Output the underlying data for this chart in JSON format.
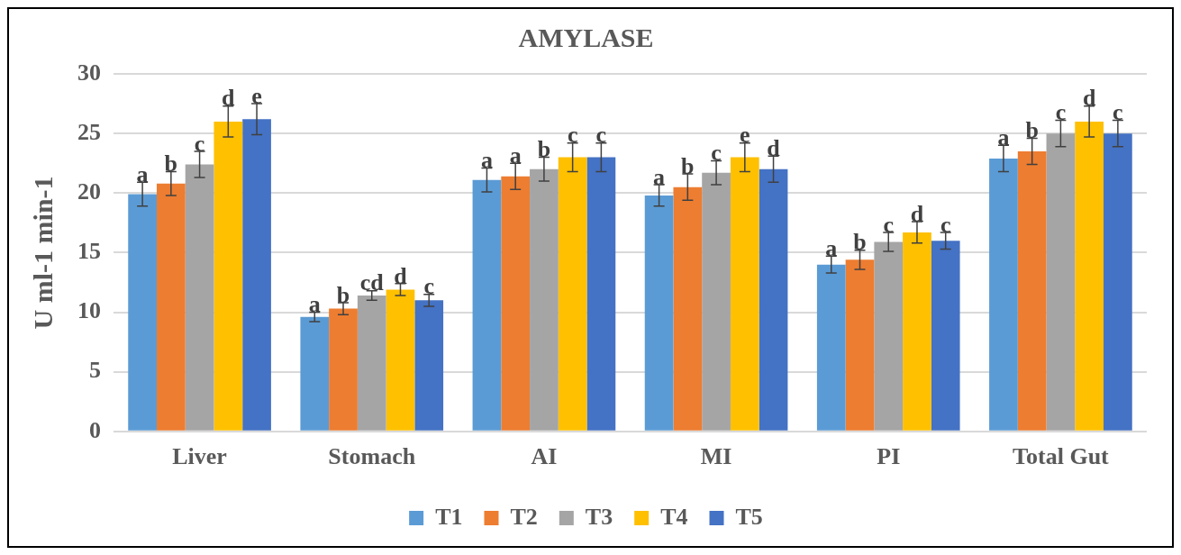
{
  "chart_data": {
    "type": "bar",
    "title": "AMYLASE",
    "ylabel": "U ml-1 min-1",
    "categories": [
      "Liver",
      "Stomach",
      "AI",
      "MI",
      "PI",
      "Total Gut"
    ],
    "series": [
      {
        "name": "T1",
        "color": "#5b9bd5",
        "values": [
          19.9,
          9.6,
          21.1,
          19.8,
          14.0,
          22.9
        ],
        "errors": [
          1.0,
          0.4,
          1.0,
          0.9,
          0.7,
          1.1
        ],
        "value_labels": [
          "a",
          "a",
          "a",
          "a",
          "a",
          "a"
        ]
      },
      {
        "name": "T2",
        "color": "#ed7d31",
        "values": [
          20.8,
          10.3,
          21.4,
          20.5,
          14.4,
          23.5
        ],
        "errors": [
          1.0,
          0.5,
          1.1,
          1.1,
          0.8,
          1.1
        ],
        "value_labels": [
          "b",
          "b",
          "a",
          "b",
          "b",
          "b"
        ]
      },
      {
        "name": "T3",
        "color": "#a5a5a5",
        "values": [
          22.4,
          11.4,
          22.0,
          21.7,
          15.9,
          25.0
        ],
        "errors": [
          1.1,
          0.4,
          1.0,
          1.0,
          0.8,
          1.1
        ],
        "value_labels": [
          "c",
          "cd",
          "b",
          "c",
          "c",
          "c"
        ]
      },
      {
        "name": "T4",
        "color": "#ffc000",
        "values": [
          26.0,
          11.9,
          23.0,
          23.0,
          16.7,
          26.0
        ],
        "errors": [
          1.3,
          0.5,
          1.2,
          1.2,
          0.9,
          1.3
        ],
        "value_labels": [
          "d",
          "d",
          "c",
          "e",
          "d",
          "d"
        ]
      },
      {
        "name": "T5",
        "color": "#4472c4",
        "values": [
          26.2,
          11.0,
          23.0,
          22.0,
          16.0,
          25.0
        ],
        "errors": [
          1.3,
          0.5,
          1.2,
          1.1,
          0.7,
          1.1
        ],
        "value_labels": [
          "e",
          "c",
          "c",
          "d",
          "c",
          "c"
        ]
      }
    ],
    "ylim": [
      0,
      30
    ],
    "yticks": [
      0,
      5,
      10,
      15,
      20,
      25,
      30
    ],
    "grid": "y",
    "legend": "bottom"
  }
}
